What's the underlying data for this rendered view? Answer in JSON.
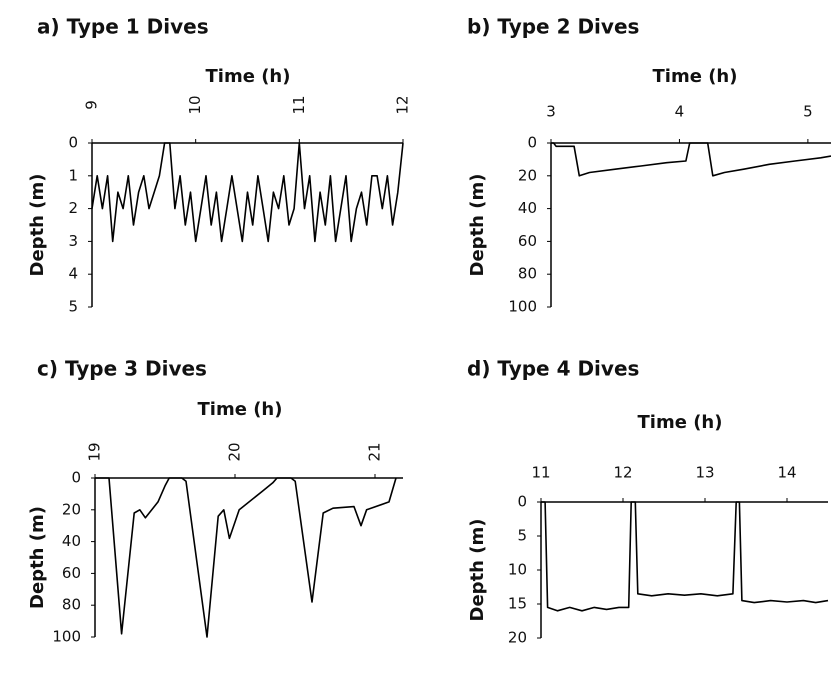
{
  "chart_data": [
    {
      "type": "line",
      "title": "a) Type 1 Dives",
      "xlabel": "Time (h)",
      "ylabel": "Depth (m)",
      "x_axis_position": "top",
      "y_inverted": true,
      "xtick_rotation": -90,
      "color": "#000000",
      "xlim": [
        9,
        12
      ],
      "xticks": [
        9,
        10,
        11,
        12
      ],
      "ylim": [
        0,
        5
      ],
      "yticks": [
        0,
        1,
        2,
        3,
        4,
        5
      ],
      "x": [
        9.0,
        9.05,
        9.1,
        9.15,
        9.2,
        9.25,
        9.3,
        9.35,
        9.4,
        9.45,
        9.5,
        9.55,
        9.6,
        9.65,
        9.7,
        9.75,
        9.8,
        9.85,
        9.9,
        9.95,
        10.0,
        10.05,
        10.1,
        10.15,
        10.2,
        10.25,
        10.3,
        10.35,
        10.4,
        10.45,
        10.5,
        10.55,
        10.6,
        10.65,
        10.7,
        10.75,
        10.8,
        10.85,
        10.9,
        10.95,
        11.0,
        11.05,
        11.1,
        11.15,
        11.2,
        11.25,
        11.3,
        11.35,
        11.4,
        11.45,
        11.5,
        11.55,
        11.6,
        11.65,
        11.7,
        11.75,
        11.8,
        11.85,
        11.9,
        11.95,
        12.0
      ],
      "values": [
        2,
        1,
        2,
        1,
        3,
        1.5,
        2,
        1,
        2.5,
        1.5,
        1,
        2,
        1.5,
        1,
        0,
        0,
        2,
        1,
        2.5,
        1.5,
        3,
        2,
        1,
        2.5,
        1.5,
        3,
        2,
        1,
        2,
        3,
        1.5,
        2.5,
        1,
        2,
        3,
        1.5,
        2,
        1,
        2.5,
        2,
        0,
        2,
        1,
        3,
        1.5,
        2.5,
        1,
        3,
        2,
        1,
        3,
        2,
        1.5,
        2.5,
        1,
        1,
        2,
        1,
        2.5,
        1.5,
        0
      ]
    },
    {
      "type": "line",
      "title": "b) Type 2 Dives",
      "xlabel": "Time (h)",
      "ylabel": "Depth (m)",
      "x_axis_position": "top",
      "y_inverted": true,
      "xtick_rotation": 0,
      "color": "#000000",
      "xlim": [
        3,
        5.18
      ],
      "xticks": [
        3,
        4,
        5
      ],
      "ylim": [
        0,
        100
      ],
      "yticks": [
        0,
        20,
        40,
        60,
        80,
        100
      ],
      "x": [
        3.0,
        3.02,
        3.04,
        3.18,
        3.22,
        3.3,
        3.5,
        3.7,
        3.9,
        4.05,
        4.08,
        4.22,
        4.26,
        4.35,
        4.5,
        4.7,
        4.9,
        5.1,
        5.18
      ],
      "values": [
        0,
        0,
        2,
        2,
        20,
        18,
        16,
        14,
        12,
        11,
        0,
        0,
        20,
        18,
        16,
        13,
        11,
        9,
        8
      ]
    },
    {
      "type": "line",
      "title": "c) Type 3 Dives",
      "xlabel": "Time (h)",
      "ylabel": "Depth (m)",
      "x_axis_position": "top",
      "y_inverted": true,
      "xtick_rotation": -90,
      "color": "#000000",
      "xlim": [
        19,
        21.2
      ],
      "xticks": [
        19,
        20,
        21
      ],
      "ylim": [
        0,
        100
      ],
      "yticks": [
        0,
        20,
        40,
        60,
        80,
        100
      ],
      "x": [
        19.0,
        19.1,
        19.19,
        19.28,
        19.32,
        19.36,
        19.45,
        19.5,
        19.53,
        19.62,
        19.65,
        19.8,
        19.88,
        19.92,
        19.96,
        20.03,
        20.2,
        20.27,
        20.3,
        20.4,
        20.43,
        20.55,
        20.63,
        20.7,
        20.85,
        20.9,
        20.94,
        21.1,
        21.15
      ],
      "values": [
        0,
        0,
        98,
        22,
        20,
        25,
        15,
        5,
        0,
        0,
        2,
        100,
        24,
        20,
        38,
        20,
        8,
        3,
        0,
        0,
        2,
        78,
        22,
        19,
        18,
        30,
        20,
        15,
        0
      ]
    },
    {
      "type": "line",
      "title": "d) Type 4 Dives",
      "xlabel": "Time (h)",
      "ylabel": "Depth (m)",
      "x_axis_position": "top",
      "y_inverted": true,
      "xtick_rotation": 0,
      "color": "#000000",
      "xlim": [
        11,
        14.5
      ],
      "xticks": [
        11,
        12,
        13,
        14
      ],
      "ylim": [
        0,
        20
      ],
      "yticks": [
        0,
        5,
        10,
        15,
        20
      ],
      "x": [
        11.0,
        11.05,
        11.08,
        11.2,
        11.35,
        11.5,
        11.65,
        11.8,
        11.95,
        12.07,
        12.1,
        12.15,
        12.18,
        12.35,
        12.55,
        12.75,
        12.95,
        13.15,
        13.34,
        13.38,
        13.42,
        13.45,
        13.6,
        13.8,
        14.0,
        14.2,
        14.35,
        14.5
      ],
      "values": [
        0,
        0,
        15.5,
        16,
        15.5,
        16,
        15.5,
        15.8,
        15.5,
        15.5,
        0,
        0,
        13.5,
        13.8,
        13.5,
        13.7,
        13.5,
        13.8,
        13.5,
        0,
        0,
        14.5,
        14.8,
        14.5,
        14.7,
        14.5,
        14.8,
        14.5
      ]
    }
  ]
}
